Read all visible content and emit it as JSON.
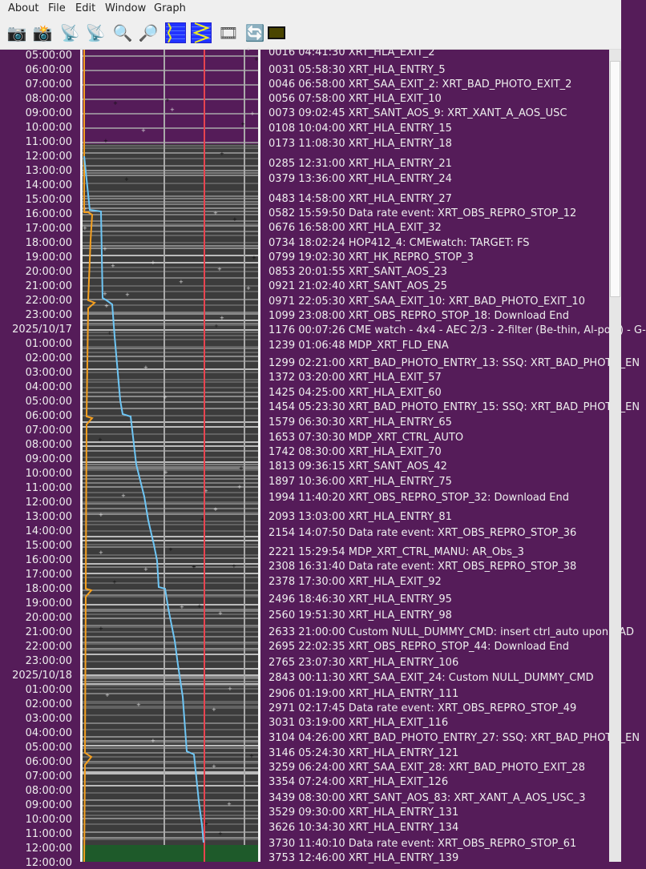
{
  "menu": [
    "About",
    "File",
    "Edit",
    "Window",
    "Graph"
  ],
  "toolbar": [
    {
      "name": "camera-up-icon",
      "glyph": "📷"
    },
    {
      "name": "camera-download-icon",
      "glyph": "📸"
    },
    {
      "name": "satellite-dish-up-icon",
      "glyph": "📡"
    },
    {
      "name": "satellite-dish-download-icon",
      "glyph": "📡"
    },
    {
      "name": "zoom-out-icon",
      "glyph": "🔍"
    },
    {
      "name": "zoom-in-icon",
      "glyph": "🔎"
    },
    {
      "name": "graph-grid-icon",
      "glyph": ""
    },
    {
      "name": "graph-zigzag-icon",
      "glyph": ""
    },
    {
      "name": "film-icon",
      "glyph": "🎞"
    },
    {
      "name": "refresh-icon",
      "glyph": "🔄"
    },
    {
      "name": "color-swatch-icon",
      "glyph": ""
    }
  ],
  "colors": {
    "background": "#551c59",
    "plot": "#3c3c3c",
    "blue_curve": "#6ec6f5",
    "orange_curve": "#f5a020",
    "red_line": "#e8434f",
    "green_band": "#1e5a2a"
  },
  "time_labels": [
    "05:00:00",
    "06:00:00",
    "07:00:00",
    "08:00:00",
    "09:00:00",
    "10:00:00",
    "11:00:00",
    "12:00:00",
    "13:00:00",
    "14:00:00",
    "15:00:00",
    "16:00:00",
    "17:00:00",
    "18:00:00",
    "19:00:00",
    "20:00:00",
    "21:00:00",
    "22:00:00",
    "23:00:00",
    "2025/10/17",
    "01:00:00",
    "02:00:00",
    "03:00:00",
    "04:00:00",
    "05:00:00",
    "06:00:00",
    "07:00:00",
    "08:00:00",
    "09:00:00",
    "10:00:00",
    "11:00:00",
    "12:00:00",
    "13:00:00",
    "14:00:00",
    "15:00:00",
    "16:00:00",
    "17:00:00",
    "18:00:00",
    "19:00:00",
    "20:00:00",
    "21:00:00",
    "22:00:00",
    "23:00:00",
    "2025/10/18",
    "01:00:00",
    "02:00:00",
    "03:00:00",
    "04:00:00",
    "05:00:00",
    "06:00:00",
    "07:00:00",
    "08:00:00",
    "09:00:00",
    "10:00:00",
    "11:00:00",
    "12:00:00",
    "12:00:00"
  ],
  "events": [
    "0016 04:41:30 XRT_HLA_EXIT_2",
    "0031 05:58:30 XRT_HLA_ENTRY_5",
    "0046 06:58:00 XRT_SAA_EXIT_2: XRT_BAD_PHOTO_EXIT_2",
    "0056 07:58:00 XRT_HLA_EXIT_10",
    "0073 09:02:45 XRT_SANT_AOS_9: XRT_XANT_A_AOS_USC",
    "0108 10:04:00 XRT_HLA_ENTRY_15",
    "0173 11:08:30 XRT_HLA_ENTRY_18",
    "0285 12:31:00 XRT_HLA_ENTRY_21",
    "0379 13:36:00 XRT_HLA_ENTRY_24",
    "0483 14:58:00 XRT_HLA_ENTRY_27",
    "0582 15:59:50 Data rate event: XRT_OBS_REPRO_STOP_12",
    "0676 16:58:00 XRT_HLA_EXIT_32",
    "0734 18:02:24 HOP412_4: CMEwatch: TARGET: FS",
    "0799 19:02:30 XRT_HK_REPRO_STOP_3",
    "0853 20:01:55 XRT_SANT_AOS_23",
    "0921 21:02:40 XRT_SANT_AOS_25",
    "0971 22:05:30 XRT_SAA_EXIT_10: XRT_BAD_PHOTO_EXIT_10",
    "1099 23:08:00 XRT_OBS_REPRO_STOP_18: Download End",
    "1176 00:07:26 CME watch - 4x4 - AEC 2/3 - 2-filter (Be-thin, Al-poly) - G-",
    "1239 01:06:48 MDP_XRT_FLD_ENA",
    "1299 02:21:00 XRT_BAD_PHOTO_ENTRY_13: SSQ: XRT_BAD_PHOTO_EN",
    "1372 03:20:00 XRT_HLA_EXIT_57",
    "1425 04:25:00 XRT_HLA_EXIT_60",
    "1454 05:23:30 XRT_BAD_PHOTO_ENTRY_15: SSQ: XRT_BAD_PHOTO_EN",
    "1579 06:30:30 XRT_HLA_ENTRY_65",
    "1653 07:30:30 MDP_XRT_CTRL_AUTO",
    "1742 08:30:00 XRT_HLA_EXIT_70",
    "1813 09:36:15 XRT_SANT_AOS_42",
    "1897 10:36:00 XRT_HLA_ENTRY_75",
    "1994 11:40:20 XRT_OBS_REPRO_STOP_32: Download End",
    "2093 13:03:00 XRT_HLA_ENTRY_81",
    "2154 14:07:50 Data rate event: XRT_OBS_REPRO_STOP_36",
    "2221 15:29:54 MDP_XRT_CTRL_MANU: AR_Obs_3",
    "2308 16:31:40 Data rate event: XRT_OBS_REPRO_STOP_38",
    "2378 17:30:00 XRT_HLA_EXIT_92",
    "2496 18:46:30 XRT_HLA_ENTRY_95",
    "2560 19:51:30 XRT_HLA_ENTRY_98",
    "2633 21:00:00 Custom NULL_DUMMY_CMD: insert ctrl_auto upon BAD",
    "2695 22:02:35 XRT_OBS_REPRO_STOP_44: Download End",
    "2765 23:07:30 XRT_HLA_ENTRY_106",
    "2843 00:11:30 XRT_SAA_EXIT_24: Custom NULL_DUMMY_CMD",
    "2906 01:19:00 XRT_HLA_ENTRY_111",
    "2971 02:17:45 Data rate event: XRT_OBS_REPRO_STOP_49",
    "3031 03:19:00 XRT_HLA_EXIT_116",
    "3104 04:26:00 XRT_BAD_PHOTO_ENTRY_27: SSQ: XRT_BAD_PHOTO_EN",
    "3146 05:24:30 XRT_HLA_ENTRY_121",
    "3259 06:24:00 XRT_SAA_EXIT_28: XRT_BAD_PHOTO_EXIT_28",
    "3354 07:24:00 XRT_HLA_EXIT_126",
    "3439 08:30:00 XRT_SANT_AOS_83: XRT_XANT_A_AOS_USC_3",
    "3529 09:30:00 XRT_HLA_ENTRY_131",
    "3626 10:34:30 XRT_HLA_ENTRY_134",
    "3730 11:40:10 Data rate event: XRT_OBS_REPRO_STOP_61",
    "3753 12:46:00 XRT_HLA_ENTRY_139"
  ]
}
